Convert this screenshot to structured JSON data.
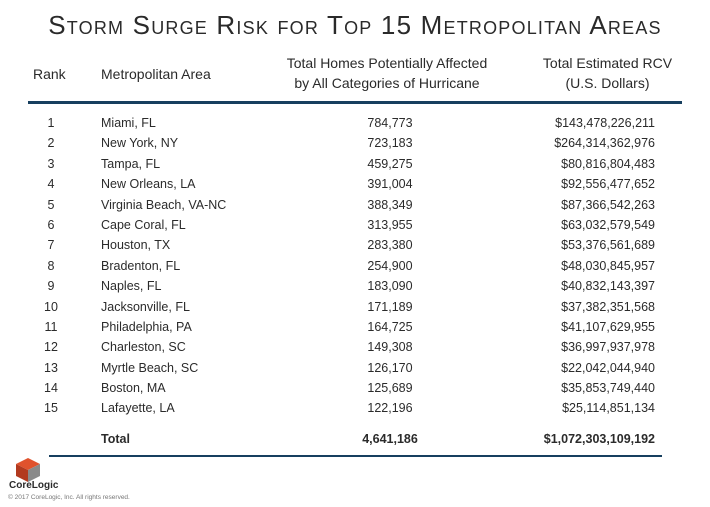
{
  "title": "Storm Surge Risk for Top 15 Metropolitan Areas",
  "headers": {
    "rank": "Rank",
    "metro": "Metropolitan Area",
    "homes_line1": "Total Homes Potentially Affected",
    "homes_line2": "by All Categories of Hurricane",
    "rcv_line1": "Total Estimated RCV",
    "rcv_line2": "(U.S. Dollars)"
  },
  "rows": [
    {
      "rank": "1",
      "metro": "Miami, FL",
      "homes": "784,773",
      "rcv": "$143,478,226,211"
    },
    {
      "rank": "2",
      "metro": "New York, NY",
      "homes": "723,183",
      "rcv": "$264,314,362,976"
    },
    {
      "rank": "3",
      "metro": "Tampa, FL",
      "homes": "459,275",
      "rcv": "$80,816,804,483"
    },
    {
      "rank": "4",
      "metro": "New Orleans, LA",
      "homes": "391,004",
      "rcv": "$92,556,477,652"
    },
    {
      "rank": "5",
      "metro": "Virginia Beach, VA-NC",
      "homes": "388,349",
      "rcv": "$87,366,542,263"
    },
    {
      "rank": "6",
      "metro": "Cape Coral, FL",
      "homes": "313,955",
      "rcv": "$63,032,579,549"
    },
    {
      "rank": "7",
      "metro": "Houston, TX",
      "homes": "283,380",
      "rcv": "$53,376,561,689"
    },
    {
      "rank": "8",
      "metro": "Bradenton, FL",
      "homes": "254,900",
      "rcv": "$48,030,845,957"
    },
    {
      "rank": "9",
      "metro": "Naples, FL",
      "homes": "183,090",
      "rcv": "$40,832,143,397"
    },
    {
      "rank": "10",
      "metro": "Jacksonville, FL",
      "homes": "171,189",
      "rcv": "$37,382,351,568"
    },
    {
      "rank": "11",
      "metro": "Philadelphia, PA",
      "homes": "164,725",
      "rcv": "$41,107,629,955"
    },
    {
      "rank": "12",
      "metro": "Charleston, SC",
      "homes": "149,308",
      "rcv": "$36,997,937,978"
    },
    {
      "rank": "13",
      "metro": "Myrtle Beach, SC",
      "homes": "126,170",
      "rcv": "$22,042,044,940"
    },
    {
      "rank": "14",
      "metro": "Boston, MA",
      "homes": "125,689",
      "rcv": "$35,853,749,440"
    },
    {
      "rank": "15",
      "metro": "Lafayette, LA",
      "homes": "122,196",
      "rcv": "$25,114,851,134"
    }
  ],
  "total": {
    "label": "Total",
    "homes": "4,641,186",
    "rcv": "$1,072,303,109,192"
  },
  "logo": {
    "name": "CoreLogic",
    "icon": "corelogic-cube-logo",
    "colors": [
      "#e0522d",
      "#b23a1f",
      "#8a8a8a"
    ]
  },
  "copyright": "© 2017 CoreLogic, Inc. All rights reserved.",
  "accent_color": "#173f5f"
}
